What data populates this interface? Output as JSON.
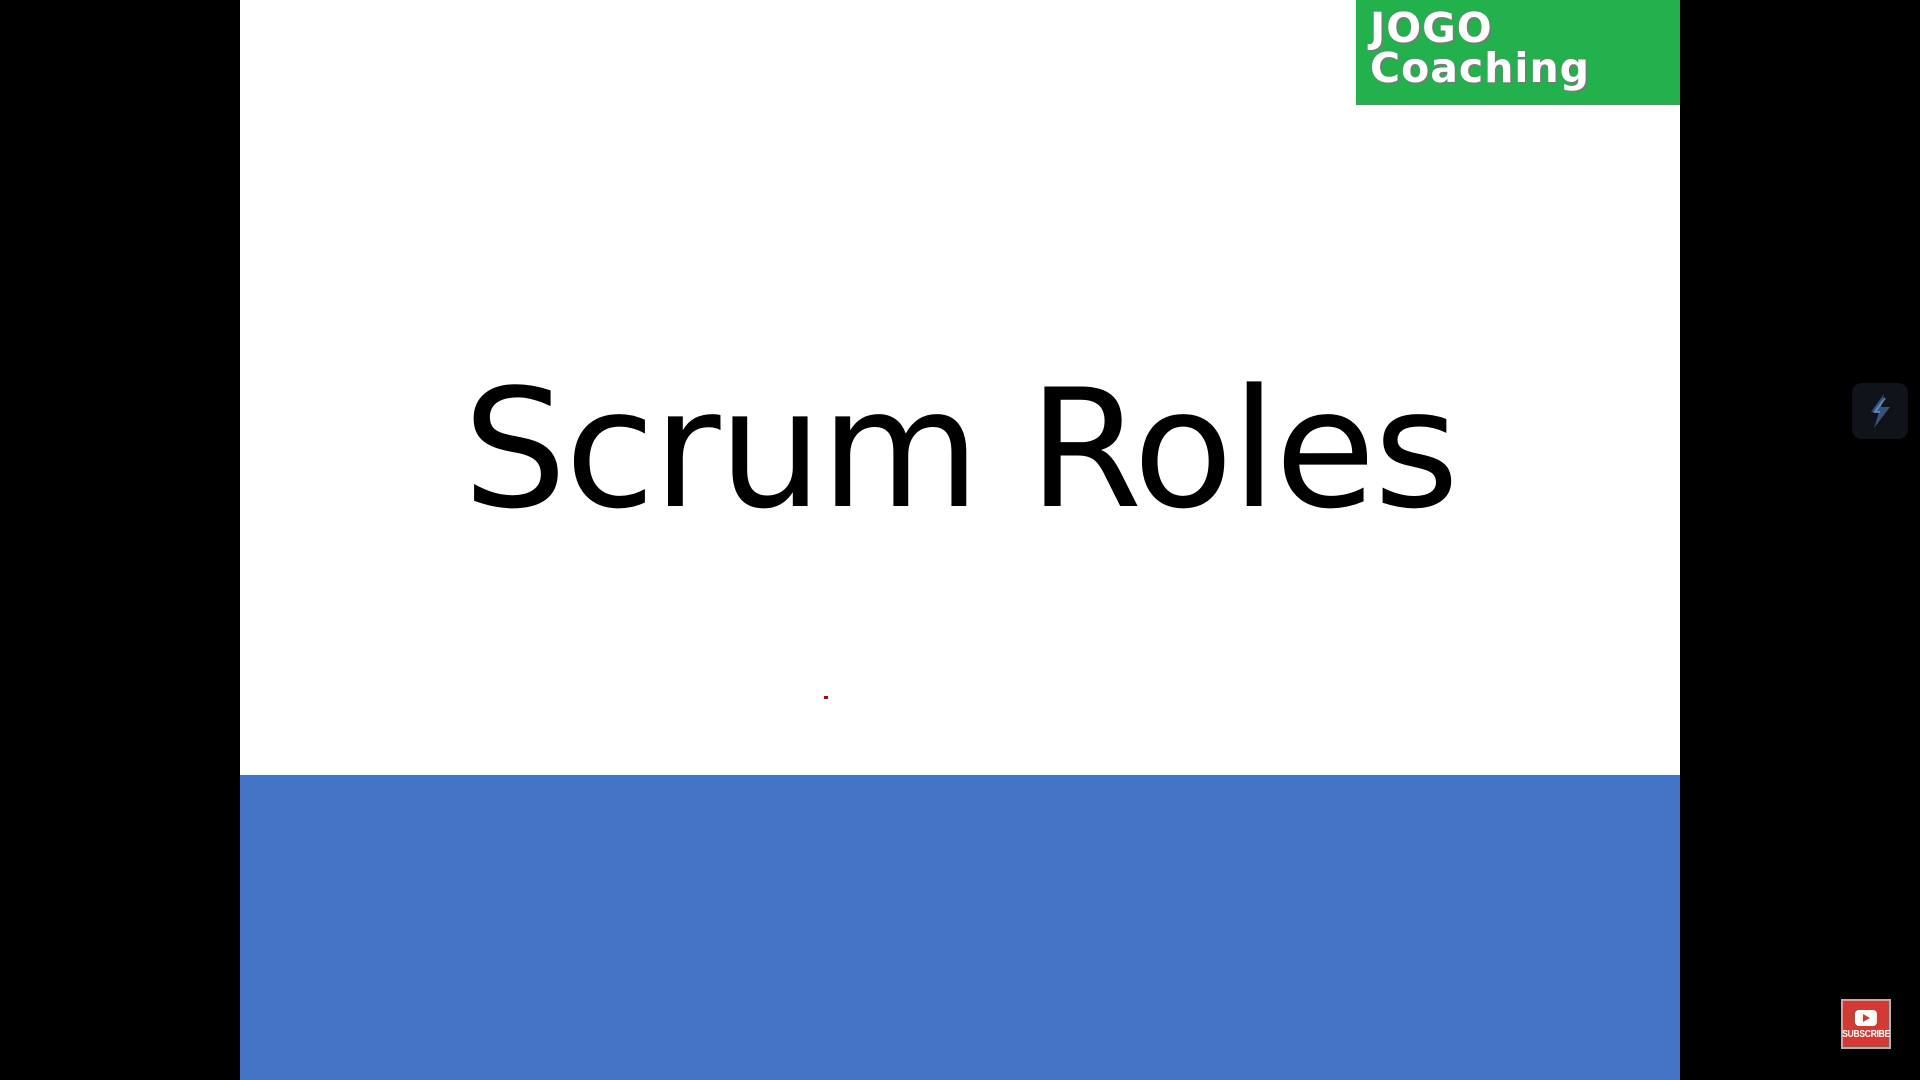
{
  "slide": {
    "logo": {
      "line1": "JOGO",
      "line2": "Coaching",
      "background": "#22b14c"
    },
    "title": "Scrum Roles",
    "footer_color": "#4472c4"
  },
  "overlay": {
    "widget_icon": "lightning-bolt-icon",
    "subscribe": {
      "icon": "play-icon",
      "label": "SUBSCRIBE",
      "color": "#d23a34"
    }
  }
}
